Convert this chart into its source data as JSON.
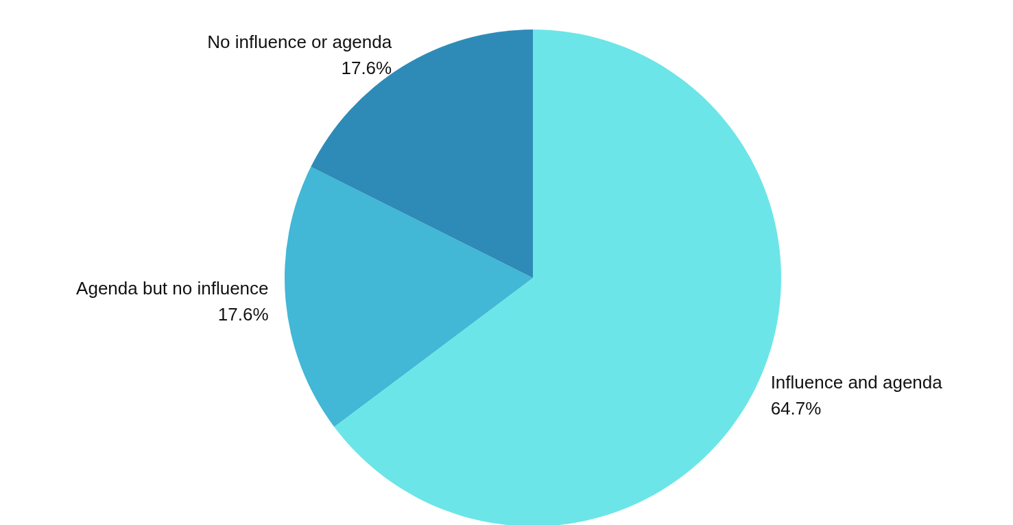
{
  "chart_data": {
    "type": "pie",
    "categories": [
      "Influence and agenda",
      "Agenda but no influence",
      "No influence or agenda"
    ],
    "values": [
      64.7,
      17.6,
      17.6
    ],
    "colors": [
      "#6ce5e8",
      "#42b7d6",
      "#2e8bb8"
    ],
    "value_labels": [
      "64.7%",
      "17.6%",
      "17.6%"
    ],
    "legend": false
  }
}
